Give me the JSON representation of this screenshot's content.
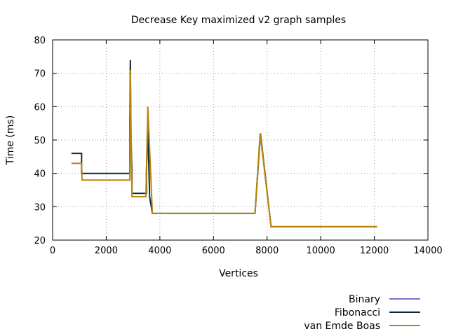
{
  "chart_data": {
    "type": "line",
    "title": "Decrease Key maximized v2 graph samples",
    "xlabel": "Vertices",
    "ylabel": "Time (ms)",
    "xlim": [
      0,
      14000
    ],
    "ylim": [
      20,
      80
    ],
    "x_ticks": [
      0,
      2000,
      4000,
      6000,
      8000,
      10000,
      12000,
      14000
    ],
    "y_ticks": [
      20,
      30,
      40,
      50,
      60,
      70,
      80
    ],
    "grid": true,
    "legend_position": "bottom-right",
    "series": [
      {
        "name": "Binary",
        "color": "#7a70c9",
        "points": [
          [
            2880,
            57
          ],
          [
            2890,
            55
          ]
        ]
      },
      {
        "name": "Fibonacci",
        "color": "#0d2a3a",
        "points": [
          [
            700,
            46
          ],
          [
            1080,
            46
          ],
          [
            1080,
            40
          ],
          [
            2880,
            40
          ],
          [
            2880,
            55
          ],
          [
            2900,
            74
          ],
          [
            2920,
            52
          ],
          [
            2960,
            41
          ],
          [
            2960,
            34
          ],
          [
            3500,
            34
          ],
          [
            3500,
            41
          ],
          [
            3550,
            54
          ],
          [
            3620,
            33
          ],
          [
            3720,
            28
          ],
          [
            7550,
            28
          ],
          [
            7750,
            52
          ],
          [
            8150,
            24
          ],
          [
            12100,
            24
          ]
        ]
      },
      {
        "name": "van Emde Boas",
        "color": "#b8860b",
        "points": [
          [
            700,
            43
          ],
          [
            1080,
            43
          ],
          [
            1100,
            38
          ],
          [
            2880,
            38
          ],
          [
            2900,
            71
          ],
          [
            2960,
            33
          ],
          [
            3480,
            33
          ],
          [
            3550,
            60
          ],
          [
            3720,
            28
          ],
          [
            7550,
            28
          ],
          [
            7740,
            52
          ],
          [
            8150,
            24
          ],
          [
            12100,
            24
          ]
        ]
      }
    ]
  }
}
